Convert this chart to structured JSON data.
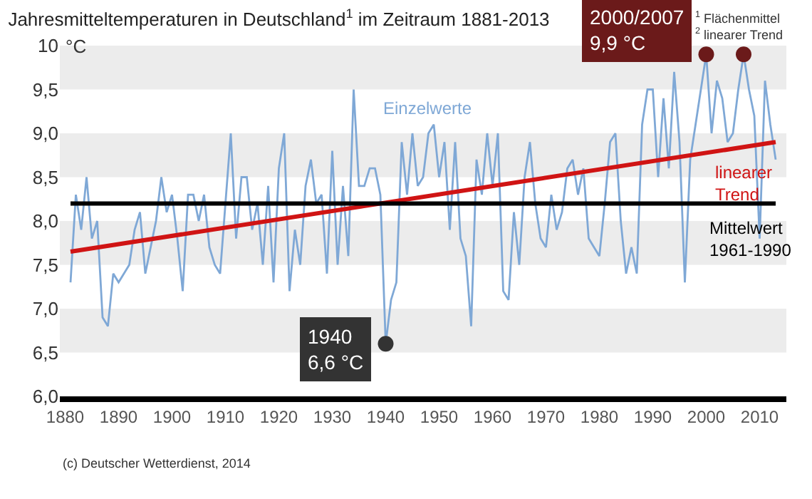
{
  "chart_data": {
    "type": "line",
    "title": "Jahresmitteltemperaturen in Deutschland$^{1}$ im Zeitraum 1881-2013",
    "ylabel": "°C",
    "x": [
      1881,
      1882,
      1883,
      1884,
      1885,
      1886,
      1887,
      1888,
      1889,
      1890,
      1891,
      1892,
      1893,
      1894,
      1895,
      1896,
      1897,
      1898,
      1899,
      1900,
      1901,
      1902,
      1903,
      1904,
      1905,
      1906,
      1907,
      1908,
      1909,
      1910,
      1911,
      1912,
      1913,
      1914,
      1915,
      1916,
      1917,
      1918,
      1919,
      1920,
      1921,
      1922,
      1923,
      1924,
      1925,
      1926,
      1927,
      1928,
      1929,
      1930,
      1931,
      1932,
      1933,
      1934,
      1935,
      1936,
      1937,
      1938,
      1939,
      1940,
      1941,
      1942,
      1943,
      1944,
      1945,
      1946,
      1947,
      1948,
      1949,
      1950,
      1951,
      1952,
      1953,
      1954,
      1955,
      1956,
      1957,
      1958,
      1959,
      1960,
      1961,
      1962,
      1963,
      1964,
      1965,
      1966,
      1967,
      1968,
      1969,
      1970,
      1971,
      1972,
      1973,
      1974,
      1975,
      1976,
      1977,
      1978,
      1979,
      1980,
      1981,
      1982,
      1983,
      1984,
      1985,
      1986,
      1987,
      1988,
      1989,
      1990,
      1991,
      1992,
      1993,
      1994,
      1995,
      1996,
      1997,
      1998,
      1999,
      2000,
      2001,
      2002,
      2003,
      2004,
      2005,
      2006,
      2007,
      2008,
      2009,
      2010,
      2011,
      2012,
      2013
    ],
    "series": [
      {
        "name": "Einzelwerte",
        "color": "#7fa8d6",
        "values": [
          7.3,
          8.3,
          7.9,
          8.5,
          7.8,
          8.0,
          6.9,
          6.8,
          7.4,
          7.3,
          7.4,
          7.5,
          7.9,
          8.1,
          7.4,
          7.7,
          8.0,
          8.5,
          8.1,
          8.3,
          7.8,
          7.2,
          8.3,
          8.3,
          8.0,
          8.3,
          7.7,
          7.5,
          7.4,
          8.2,
          9.0,
          7.8,
          8.5,
          8.5,
          7.9,
          8.2,
          7.5,
          8.4,
          7.3,
          8.6,
          9.0,
          7.2,
          7.9,
          7.5,
          8.4,
          8.7,
          8.2,
          8.3,
          7.4,
          8.8,
          7.5,
          8.4,
          7.6,
          9.5,
          8.4,
          8.4,
          8.6,
          8.6,
          8.3,
          6.6,
          7.1,
          7.3,
          8.9,
          8.3,
          9.0,
          8.4,
          8.5,
          9.0,
          9.1,
          8.5,
          8.9,
          7.9,
          8.9,
          7.8,
          7.6,
          6.8,
          8.7,
          8.3,
          9.0,
          8.4,
          9.0,
          7.2,
          7.1,
          8.1,
          7.5,
          8.5,
          8.9,
          8.2,
          7.8,
          7.7,
          8.3,
          7.9,
          8.1,
          8.6,
          8.7,
          8.3,
          8.6,
          7.8,
          7.7,
          7.6,
          8.2,
          8.9,
          9.0,
          8.0,
          7.4,
          7.7,
          7.4,
          9.1,
          9.5,
          9.5,
          8.5,
          9.4,
          8.6,
          9.7,
          8.9,
          7.3,
          8.7,
          9.1,
          9.5,
          9.9,
          9.0,
          9.6,
          9.4,
          8.9,
          9.0,
          9.5,
          9.9,
          9.5,
          9.2,
          7.8,
          9.6,
          9.1,
          8.7
        ]
      },
      {
        "name": "linearer Trend",
        "color": "#d01414",
        "x": [
          1881,
          2013
        ],
        "values": [
          7.65,
          8.9
        ]
      },
      {
        "type": "scatter",
        "marker": "circle",
        "color": "#333333",
        "x": [
          1940
        ],
        "values": [
          6.6
        ]
      },
      {
        "type": "scatter",
        "marker": "circle",
        "color": "#6b1a1a",
        "x": [
          2000,
          2007
        ],
        "values": [
          9.9,
          9.9
        ]
      }
    ],
    "xlim": [
      1879,
      2015
    ],
    "xticks": [
      1880,
      1890,
      1900,
      1910,
      1920,
      1930,
      1940,
      1950,
      1960,
      1970,
      1980,
      1990,
      2000,
      2010
    ],
    "ylim": [
      6,
      10
    ],
    "yticks": [
      {
        "value": 6,
        "label": "6,0"
      },
      {
        "value": 6.5,
        "label": "6,5"
      },
      {
        "value": 7,
        "label": "7,0"
      },
      {
        "value": 7.5,
        "label": "7,5"
      },
      {
        "value": 8,
        "label": "8,0"
      },
      {
        "value": 8.5,
        "label": "8,5"
      },
      {
        "value": 9,
        "label": "9,0"
      },
      {
        "value": 9.5,
        "label": "9,5"
      },
      10
    ],
    "ref_lines": [
      {
        "axis": "y",
        "value": 8.2,
        "label": "Mittelwert\n1961-1990",
        "color": "#000000"
      }
    ],
    "bands": [
      {
        "axis": "y",
        "from": 9.5,
        "to": 10,
        "color": "#ececec"
      },
      {
        "axis": "y",
        "from": 8.5,
        "to": 9,
        "color": "#ececec"
      },
      {
        "axis": "y",
        "from": 7.5,
        "to": 8,
        "color": "#ececec"
      },
      {
        "axis": "y",
        "from": 6.5,
        "to": 7,
        "color": "#ececec"
      }
    ],
    "annotations": [
      {
        "text": "1940\n6,6 °C",
        "x": 1940,
        "y": 6.6
      },
      {
        "text": "2000/2007\n9,9 °C",
        "x": 2000,
        "y": 9.9
      },
      "$^{1}$ Flächenmittel\n$^{2}$ linearer Trend",
      "(c) Deutscher Wetterdienst, 2014"
    ],
    "grid": false,
    "legend": false,
    "marker": "none",
    "line_style": "solid"
  }
}
